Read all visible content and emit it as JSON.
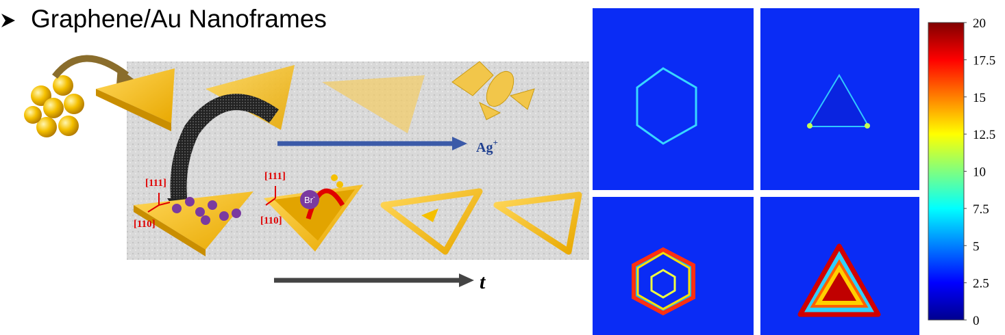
{
  "title": "Graphene/Au Nanoframes",
  "scheme": {
    "ion_symbol": "Ag",
    "ion_charge": "+",
    "time_label": "t",
    "facet_top": "[111]",
    "facet_side": "[110]",
    "bromide_symbol": "Br",
    "bromide_charge": "-"
  },
  "colorbar": {
    "lim": [
      0,
      20
    ],
    "ticks": [
      0,
      2.5,
      5,
      7.5,
      10,
      12.5,
      15,
      17.5,
      20
    ]
  }
}
